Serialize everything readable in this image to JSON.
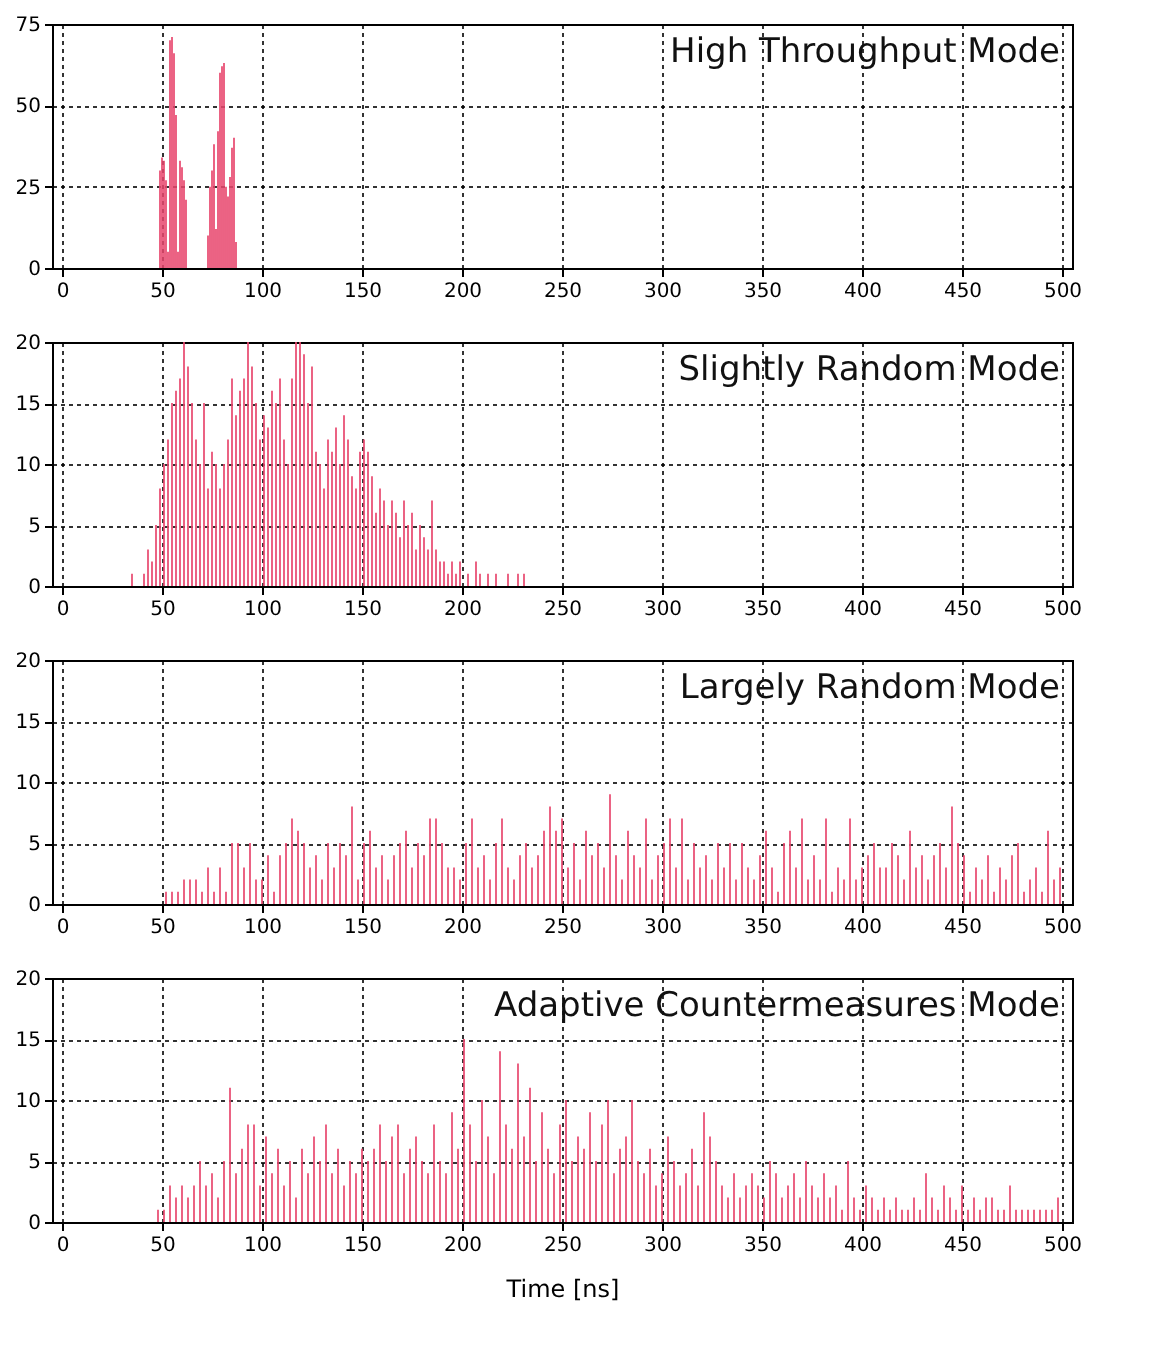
{
  "chart_data": [
    {
      "type": "bar",
      "title": "High Throughput Mode",
      "xlim": [
        0,
        500
      ],
      "xticks": [
        0,
        50,
        100,
        150,
        200,
        250,
        300,
        350,
        400,
        450,
        500
      ],
      "ylim": [
        0,
        75
      ],
      "yticks": [
        0,
        25,
        50,
        75
      ],
      "grid": true,
      "color": "#e8476e",
      "x": [
        49,
        50,
        51,
        52,
        53,
        54,
        55,
        56,
        57,
        58,
        59,
        60,
        61,
        62,
        73,
        74,
        75,
        76,
        77,
        78,
        79,
        80,
        81,
        82,
        83,
        84,
        85,
        86,
        87
      ],
      "values": [
        30,
        34,
        33,
        27,
        5,
        70,
        71,
        66,
        47,
        5,
        33,
        31,
        27,
        21,
        10,
        25,
        30,
        38,
        12,
        42,
        60,
        62,
        63,
        25,
        22,
        28,
        37,
        40,
        8
      ]
    },
    {
      "type": "bar",
      "title": "Slightly Random Mode",
      "xlim": [
        0,
        500
      ],
      "xticks": [
        0,
        50,
        100,
        150,
        200,
        250,
        300,
        350,
        400,
        450,
        500
      ],
      "ylim": [
        0,
        20
      ],
      "yticks": [
        0,
        5,
        10,
        15,
        20
      ],
      "grid": true,
      "color": "#e8476e",
      "x": [
        35,
        41,
        43,
        45,
        47,
        49,
        51,
        53,
        55,
        57,
        59,
        61,
        63,
        65,
        67,
        69,
        71,
        73,
        75,
        77,
        79,
        81,
        83,
        85,
        87,
        89,
        91,
        93,
        95,
        97,
        99,
        101,
        103,
        105,
        107,
        109,
        111,
        113,
        115,
        117,
        119,
        121,
        123,
        125,
        127,
        129,
        131,
        133,
        135,
        137,
        139,
        141,
        143,
        145,
        147,
        149,
        151,
        153,
        155,
        157,
        159,
        161,
        163,
        165,
        167,
        169,
        171,
        173,
        175,
        177,
        179,
        181,
        183,
        185,
        187,
        189,
        191,
        193,
        195,
        197,
        199,
        203,
        207,
        209,
        213,
        217,
        223,
        228,
        231
      ],
      "values": [
        1,
        1,
        3,
        2,
        5,
        8,
        10,
        12,
        15,
        16,
        17,
        20,
        18,
        15,
        12,
        10,
        15,
        8,
        11,
        10,
        8,
        10,
        12,
        17,
        14,
        16,
        17,
        20,
        18,
        15,
        12,
        14,
        13,
        16,
        15,
        17,
        12,
        10,
        17,
        20,
        20,
        19,
        15,
        18,
        11,
        10,
        8,
        12,
        11,
        13,
        10,
        14,
        12,
        9,
        8,
        11,
        12,
        11,
        9,
        6,
        8,
        7,
        5,
        7,
        6,
        4,
        7,
        5,
        6,
        3,
        5,
        4,
        3,
        7,
        3,
        2,
        2,
        1,
        2,
        1,
        2,
        1,
        2,
        1,
        1,
        1,
        1,
        1,
        1
      ]
    },
    {
      "type": "bar",
      "title": "Largely Random Mode",
      "xlim": [
        0,
        500
      ],
      "xticks": [
        0,
        50,
        100,
        150,
        200,
        250,
        300,
        350,
        400,
        450,
        500
      ],
      "ylim": [
        0,
        20
      ],
      "yticks": [
        0,
        5,
        10,
        15,
        20
      ],
      "grid": true,
      "color": "#e8476e",
      "x": [
        52,
        55,
        58,
        61,
        64,
        67,
        70,
        73,
        76,
        79,
        82,
        85,
        88,
        91,
        94,
        97,
        100,
        103,
        106,
        109,
        112,
        115,
        118,
        121,
        124,
        127,
        130,
        133,
        136,
        139,
        142,
        145,
        148,
        151,
        154,
        157,
        160,
        163,
        166,
        169,
        172,
        175,
        178,
        181,
        184,
        187,
        190,
        193,
        196,
        199,
        202,
        205,
        208,
        211,
        214,
        217,
        220,
        223,
        226,
        229,
        232,
        235,
        238,
        241,
        244,
        247,
        250,
        253,
        256,
        259,
        262,
        265,
        268,
        271,
        274,
        277,
        280,
        283,
        286,
        289,
        292,
        295,
        298,
        301,
        304,
        307,
        310,
        313,
        316,
        319,
        322,
        325,
        328,
        331,
        334,
        337,
        340,
        343,
        346,
        349,
        352,
        355,
        358,
        361,
        364,
        367,
        370,
        373,
        376,
        379,
        382,
        385,
        388,
        391,
        394,
        397,
        400,
        403,
        406,
        409,
        412,
        415,
        418,
        421,
        424,
        427,
        430,
        433,
        436,
        439,
        442,
        445,
        448,
        451,
        454,
        457,
        460,
        463,
        466,
        469,
        472,
        475,
        478,
        481,
        484,
        487,
        490,
        493,
        496,
        499
      ],
      "values": [
        1,
        1,
        1,
        2,
        2,
        2,
        1,
        3,
        1,
        3,
        1,
        5,
        5,
        3,
        5,
        2,
        2,
        4,
        1,
        4,
        5,
        7,
        6,
        5,
        3,
        4,
        2,
        5,
        3,
        5,
        4,
        8,
        2,
        5,
        6,
        3,
        4,
        2,
        4,
        5,
        6,
        3,
        5,
        4,
        7,
        7,
        5,
        3,
        3,
        2,
        5,
        7,
        3,
        4,
        2,
        5,
        7,
        3,
        2,
        4,
        5,
        3,
        4,
        6,
        8,
        6,
        7,
        3,
        5,
        2,
        6,
        4,
        5,
        3,
        9,
        4,
        2,
        6,
        4,
        3,
        7,
        2,
        4,
        5,
        7,
        3,
        7,
        2,
        5,
        3,
        4,
        2,
        5,
        3,
        5,
        2,
        5,
        3,
        2,
        4,
        6,
        3,
        1,
        5,
        6,
        3,
        7,
        2,
        4,
        2,
        7,
        1,
        3,
        2,
        7,
        2,
        3,
        4,
        5,
        3,
        3,
        5,
        4,
        2,
        6,
        3,
        4,
        2,
        4,
        5,
        3,
        8,
        5,
        4,
        1,
        3,
        2,
        4,
        1,
        3,
        2,
        4,
        5,
        1,
        2,
        3,
        1,
        6,
        2,
        3
      ]
    },
    {
      "type": "bar",
      "title": "Adaptive Countermeasures Mode",
      "xlabel": "Time [ns]",
      "xlim": [
        0,
        500
      ],
      "xticks": [
        0,
        50,
        100,
        150,
        200,
        250,
        300,
        350,
        400,
        450,
        500
      ],
      "ylim": [
        0,
        20
      ],
      "yticks": [
        0,
        5,
        10,
        15,
        20
      ],
      "grid": true,
      "color": "#e8476e",
      "x": [
        48,
        51,
        54,
        57,
        60,
        63,
        66,
        69,
        72,
        75,
        78,
        81,
        84,
        87,
        90,
        93,
        96,
        99,
        102,
        105,
        108,
        111,
        114,
        117,
        120,
        123,
        126,
        129,
        132,
        135,
        138,
        141,
        144,
        147,
        150,
        153,
        156,
        159,
        162,
        165,
        168,
        171,
        174,
        177,
        180,
        183,
        186,
        189,
        192,
        195,
        198,
        201,
        204,
        207,
        210,
        213,
        216,
        219,
        222,
        225,
        228,
        231,
        234,
        237,
        240,
        243,
        246,
        249,
        252,
        255,
        258,
        261,
        264,
        267,
        270,
        273,
        276,
        279,
        282,
        285,
        288,
        291,
        294,
        297,
        300,
        303,
        306,
        309,
        312,
        315,
        318,
        321,
        324,
        327,
        330,
        333,
        336,
        339,
        342,
        345,
        348,
        351,
        354,
        357,
        360,
        363,
        366,
        369,
        372,
        375,
        378,
        381,
        384,
        387,
        390,
        393,
        396,
        399,
        402,
        405,
        408,
        411,
        414,
        417,
        420,
        423,
        426,
        429,
        432,
        435,
        438,
        441,
        444,
        447,
        450,
        453,
        456,
        459,
        462,
        465,
        468,
        471,
        474,
        477,
        480,
        483,
        486,
        489,
        492,
        495,
        498
      ],
      "values": [
        1,
        1,
        3,
        2,
        3,
        2,
        3,
        5,
        3,
        4,
        2,
        5,
        11,
        4,
        6,
        8,
        8,
        3,
        7,
        4,
        6,
        3,
        5,
        2,
        6,
        4,
        7,
        5,
        8,
        4,
        6,
        3,
        5,
        4,
        6,
        5,
        6,
        8,
        5,
        7,
        8,
        4,
        6,
        7,
        5,
        4,
        8,
        5,
        4,
        9,
        6,
        15,
        8,
        5,
        10,
        7,
        4,
        14,
        8,
        6,
        13,
        7,
        11,
        5,
        9,
        6,
        4,
        8,
        10,
        5,
        7,
        6,
        9,
        5,
        8,
        10,
        4,
        6,
        7,
        10,
        5,
        4,
        6,
        3,
        4,
        7,
        5,
        3,
        4,
        6,
        3,
        9,
        7,
        5,
        3,
        2,
        4,
        2,
        3,
        4,
        3,
        2,
        5,
        4,
        2,
        3,
        4,
        2,
        5,
        3,
        2,
        4,
        2,
        3,
        1,
        5,
        2,
        1,
        3,
        2,
        1,
        2,
        1,
        2,
        1,
        1,
        2,
        1,
        4,
        2,
        1,
        3,
        2,
        1,
        3,
        1,
        2,
        1,
        2,
        2,
        1,
        1,
        3,
        1,
        1,
        1,
        1,
        1,
        1,
        1,
        2
      ]
    }
  ]
}
